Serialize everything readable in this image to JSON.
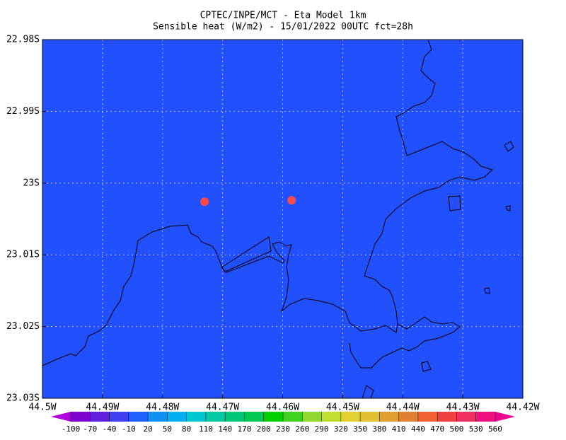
{
  "chart_data": {
    "type": "map",
    "title": "CPTEC/INPE/MCT -  Eta Model 1km",
    "subtitle": "Sensible heat (W/m2) - 15/01/2022 00UTC fct=28h",
    "field_color": "#2350fd",
    "xlim": [
      44.5,
      44.42
    ],
    "ylim": [
      22.98,
      23.03
    ],
    "xticks": [
      {
        "value": 44.5,
        "label": "44.5W"
      },
      {
        "value": 44.49,
        "label": "44.49W"
      },
      {
        "value": 44.48,
        "label": "44.48W"
      },
      {
        "value": 44.47,
        "label": "44.47W"
      },
      {
        "value": 44.46,
        "label": "44.46W"
      },
      {
        "value": 44.45,
        "label": "44.45W"
      },
      {
        "value": 44.44,
        "label": "44.44W"
      },
      {
        "value": 44.43,
        "label": "44.43W"
      },
      {
        "value": 44.42,
        "label": "44.42W"
      }
    ],
    "yticks": [
      {
        "value": 22.98,
        "label": "22.98S"
      },
      {
        "value": 22.99,
        "label": "22.99S"
      },
      {
        "value": 23,
        "label": "23S"
      },
      {
        "value": 23.01,
        "label": "23.01S"
      },
      {
        "value": 23.02,
        "label": "23.02S"
      },
      {
        "value": 23.03,
        "label": "23.03S"
      }
    ],
    "grid": true,
    "markers": {
      "color": "#ff4a4a",
      "lon": [
        44.473,
        44.4585
      ],
      "lat": [
        23.0026,
        23.0024
      ]
    },
    "colorbar": {
      "levels": [
        -100,
        -70,
        -40,
        -10,
        20,
        50,
        80,
        110,
        140,
        170,
        200,
        230,
        260,
        290,
        320,
        350,
        380,
        410,
        440,
        470,
        500,
        530,
        560
      ],
      "colors": [
        "#b000e0",
        "#8000d0",
        "#6020e0",
        "#4040f0",
        "#2060ff",
        "#1090f0",
        "#00b0f0",
        "#00c8d0",
        "#00c8a0",
        "#00c878",
        "#00c850",
        "#00d000",
        "#40d020",
        "#90d830",
        "#c0e030",
        "#e0d030",
        "#e0c030",
        "#e0a030",
        "#e08030",
        "#f06030",
        "#f04040",
        "#f03060",
        "#f01080",
        "#f00090"
      ]
    }
  }
}
